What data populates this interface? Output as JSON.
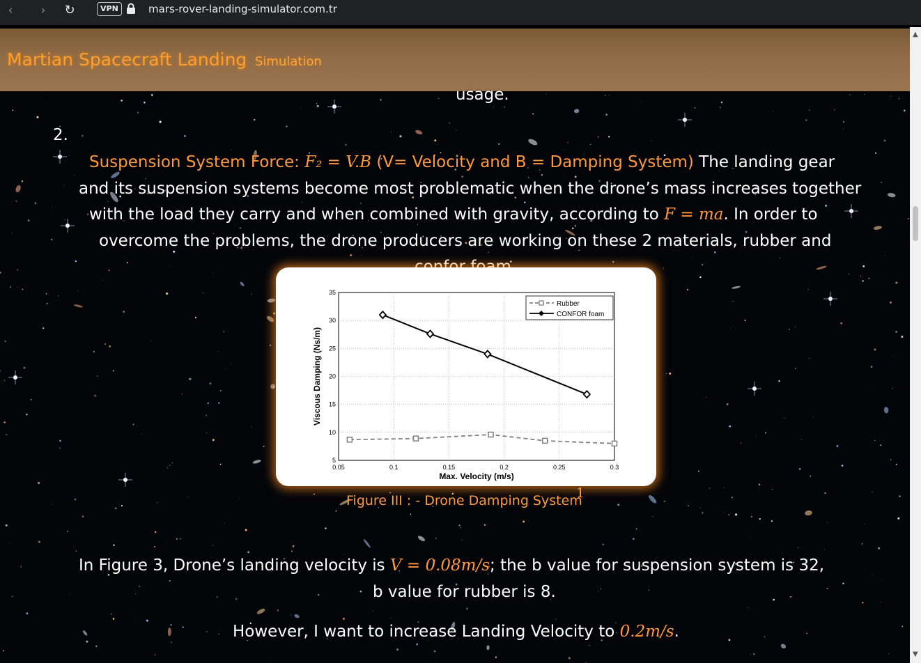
{
  "browser": {
    "back_icon": "chevron-left-icon",
    "forward_icon": "chevron-right-icon",
    "reload_icon": "reload-icon",
    "vpn_label": "VPN",
    "url": "mars-rover-landing-simulator.com.tr"
  },
  "header": {
    "brand": "Martian Spacecraft Landing",
    "nav": "Simulation"
  },
  "content": {
    "prev_tail": "usage.",
    "item_number": "2.",
    "item_label": "Suspension System Force: ",
    "formula_suspension": "F₂ = V.B",
    "formula_definition": " (V= Velocity and B = Damping System)",
    "line1_tail": " The landing gear",
    "line2": "and its suspension systems become most problematic when the drone’s mass increases together",
    "line3_a": "with the load they carry and when combined with gravity, according to ",
    "formula_newton": "F = ma",
    "line3_b": ". In order to",
    "line4": "overcome the problems, the drone producers are working on these 2 materials, rubber and",
    "line5": "confor foam.",
    "figure_caption": "Figure III : - Drone Damping System",
    "figure_footnote": "1",
    "para1_a": "In Figure 3, Drone’s landing velocity is ",
    "formula_v": "V = 0.08m/s",
    "para1_b": "; the b value for suspension system is 32,",
    "para1_line2": "b value for rubber is 8.",
    "para2_a": "However, I want to increase Landing Velocity to ",
    "formula_target": "0.2m/s",
    "para2_b": "."
  },
  "chart_data": {
    "type": "line",
    "title": "",
    "xlabel": "Max. Velocity (m/s)",
    "ylabel": "Viscous Damping (Ns/m)",
    "xlim": [
      0.05,
      0.3
    ],
    "ylim": [
      5,
      35
    ],
    "x_ticks": [
      "0.05",
      "0.1",
      "0.15",
      "0.2",
      "0.25",
      "0.3"
    ],
    "y_ticks": [
      "5",
      "10",
      "15",
      "20",
      "25",
      "30",
      "35"
    ],
    "grid": true,
    "legend_position": "top-right",
    "series": [
      {
        "name": "Rubber",
        "style": "dashed",
        "marker": "square",
        "color": "#808080",
        "points": [
          [
            0.06,
            8.7
          ],
          [
            0.12,
            8.9
          ],
          [
            0.188,
            9.6
          ],
          [
            0.237,
            8.5
          ],
          [
            0.3,
            8.0
          ]
        ]
      },
      {
        "name": "CONFOR foam",
        "style": "solid",
        "marker": "diamond",
        "color": "#000000",
        "points": [
          [
            0.09,
            31.0
          ],
          [
            0.133,
            27.6
          ],
          [
            0.185,
            24.0
          ],
          [
            0.275,
            16.8
          ]
        ]
      }
    ]
  },
  "colors": {
    "accent": "#ff9a3c",
    "header_bg": "#8f6b45"
  }
}
